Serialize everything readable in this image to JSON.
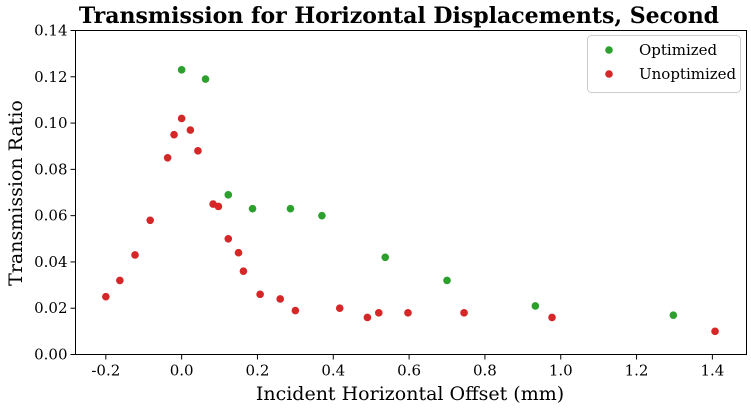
{
  "chart_data": {
    "type": "scatter",
    "title": "Transmission for Horizontal Displacements, Second",
    "xlabel": "Incident Horizontal Offset (mm)",
    "ylabel": "Transmission Ratio",
    "xlim": [
      -0.28,
      1.49
    ],
    "ylim": [
      0.0,
      0.14
    ],
    "xticks": [
      -0.2,
      0.0,
      0.2,
      0.4,
      0.6,
      0.8,
      1.0,
      1.2,
      1.4
    ],
    "xtick_labels": [
      "-0.2",
      "0.0",
      "0.2",
      "0.4",
      "0.6",
      "0.8",
      "1.0",
      "1.2",
      "1.4"
    ],
    "yticks": [
      0.0,
      0.02,
      0.04,
      0.06,
      0.08,
      0.1,
      0.12,
      0.14
    ],
    "ytick_labels": [
      "0.00",
      "0.02",
      "0.04",
      "0.06",
      "0.08",
      "0.10",
      "0.12",
      "0.14"
    ],
    "grid": false,
    "legend_position": "top-right",
    "series": [
      {
        "name": "Optimized",
        "color": "#2ca02c",
        "points": [
          [
            0.0,
            0.123
          ],
          [
            0.063,
            0.119
          ],
          [
            0.123,
            0.069
          ],
          [
            0.187,
            0.063
          ],
          [
            0.287,
            0.063
          ],
          [
            0.37,
            0.06
          ],
          [
            0.537,
            0.042
          ],
          [
            0.7,
            0.032
          ],
          [
            0.933,
            0.021
          ],
          [
            1.297,
            0.017
          ]
        ]
      },
      {
        "name": "Unoptimized",
        "color": "#d62728",
        "points": [
          [
            -0.2,
            0.025
          ],
          [
            -0.163,
            0.032
          ],
          [
            -0.123,
            0.043
          ],
          [
            -0.083,
            0.058
          ],
          [
            -0.037,
            0.085
          ],
          [
            -0.02,
            0.095
          ],
          [
            0.0,
            0.102
          ],
          [
            0.023,
            0.097
          ],
          [
            0.043,
            0.088
          ],
          [
            0.083,
            0.065
          ],
          [
            0.097,
            0.064
          ],
          [
            0.123,
            0.05
          ],
          [
            0.15,
            0.044
          ],
          [
            0.163,
            0.036
          ],
          [
            0.207,
            0.026
          ],
          [
            0.26,
            0.024
          ],
          [
            0.3,
            0.019
          ],
          [
            0.417,
            0.02
          ],
          [
            0.49,
            0.016
          ],
          [
            0.52,
            0.018
          ],
          [
            0.597,
            0.018
          ],
          [
            0.745,
            0.018
          ],
          [
            0.977,
            0.016
          ],
          [
            1.407,
            0.01
          ]
        ]
      }
    ]
  }
}
